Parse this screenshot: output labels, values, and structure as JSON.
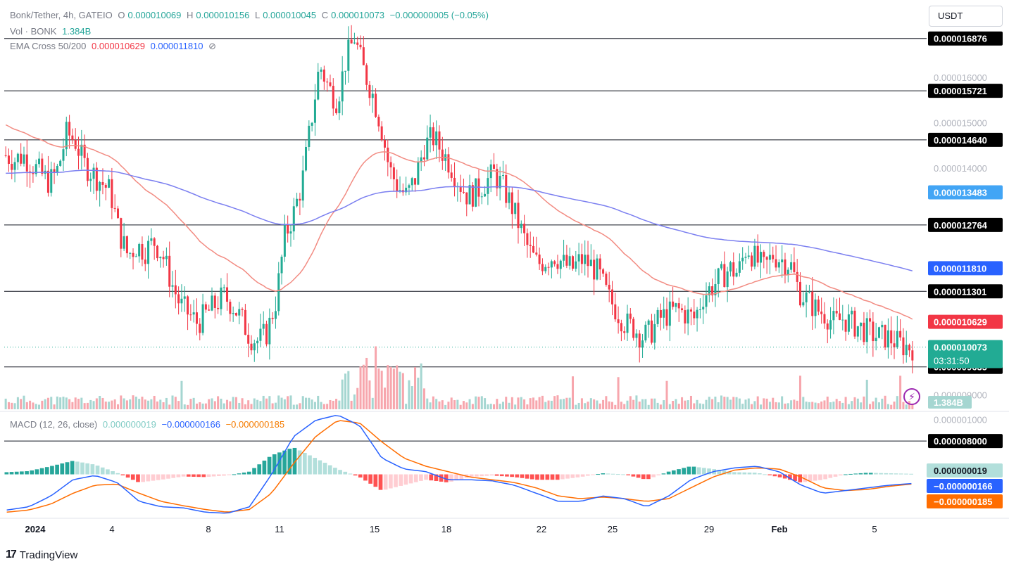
{
  "header": {
    "symbol_line": "Bonk/Tether, 4h, GATEIO",
    "o_label": "O",
    "o_value": "0.000010069",
    "h_label": "H",
    "h_value": "0.000010156",
    "l_label": "L",
    "l_value": "0.000010045",
    "c_label": "C",
    "c_value": "0.000010073",
    "change": "−0.000000005 (−0.05%)",
    "vol_label": "Vol · BONK",
    "vol_value": "1.384B",
    "ema_label": "EMA Cross 50/200",
    "ema_fast": "0.000010629",
    "ema_slow": "0.000011810",
    "ema_settings_icon": "eye-off-icon"
  },
  "currency_button": "USDT",
  "chart_data": {
    "type": "candlestick",
    "timeframe": "4h",
    "ylim": [
      8.7e-06,
      1.76e-05
    ],
    "y_ticks": [
      "0.000016000",
      "0.000015000",
      "0.000014000",
      "0.000009000"
    ],
    "x_ticks": [
      "2024",
      "4",
      "8",
      "11",
      "15",
      "18",
      "22",
      "25",
      "29",
      "Feb",
      "5"
    ],
    "horizontal_levels": [
      "0.000016876",
      "0.000015721",
      "0.000014640",
      "0.000012764",
      "0.000011301",
      "0.000009635",
      "0.000008000"
    ],
    "ema_tags": {
      "ema200": {
        "value": "0.000013483",
        "color": "#42a5f5"
      },
      "ema_slow_last": {
        "value": "0.000011810",
        "color": "#2962ff"
      },
      "ema_fast_last": {
        "value": "0.000010629",
        "color": "#f23645"
      }
    },
    "last_price": {
      "value": "0.000010073",
      "countdown": "03:31:50",
      "color": "#22ab94"
    },
    "volume_last": "1.384B",
    "colors": {
      "up": "#22ab94",
      "down": "#f23645",
      "ema_fast": "#f28b82",
      "ema_slow": "#7b7ff0",
      "volume_up": "#a5d6d1",
      "volume_down": "#f7a6ad"
    },
    "close_series": [
      1.43e-05,
      1.42e-05,
      1.43e-05,
      1.41e-05,
      1.39e-05,
      1.37e-05,
      1.4e-05,
      1.48e-05,
      1.46e-05,
      1.41e-05,
      1.39e-05,
      1.37e-05,
      1.35e-05,
      1.26e-05,
      1.21e-05,
      1.23e-05,
      1.22e-05,
      1.24e-05,
      1.21e-05,
      1.15e-05,
      1.1e-05,
      1.08e-05,
      1.06e-05,
      1.08e-05,
      1.1e-05,
      1.12e-05,
      1.1e-05,
      1.07e-05,
      1.03e-05,
      1.02e-05,
      1.04e-05,
      1.11e-05,
      1.25e-05,
      1.3e-05,
      1.37e-05,
      1.5e-05,
      1.63e-05,
      1.58e-05,
      1.55e-05,
      1.64e-05,
      1.69e-05,
      1.62e-05,
      1.57e-05,
      1.5e-05,
      1.4e-05,
      1.36e-05,
      1.34e-05,
      1.38e-05,
      1.45e-05,
      1.47e-05,
      1.44e-05,
      1.41e-05,
      1.37e-05,
      1.34e-05,
      1.35e-05,
      1.37e-05,
      1.39e-05,
      1.36e-05,
      1.32e-05,
      1.27e-05,
      1.22e-05,
      1.19e-05,
      1.2e-05,
      1.21e-05,
      1.19e-05,
      1.18e-05,
      1.2e-05,
      1.19e-05,
      1.17e-05,
      1.12e-05,
      1.09e-05,
      1.06e-05,
      1.05e-05,
      1.03e-05,
      1.04e-05,
      1.07e-05,
      1.08e-05,
      1.09e-05,
      1.08e-05,
      1.07e-05,
      1.12e-05,
      1.14e-05,
      1.16e-05,
      1.18e-05,
      1.17e-05,
      1.23e-05,
      1.2e-05,
      1.18e-05,
      1.21e-05,
      1.2e-05,
      1.19e-05,
      1.13e-05,
      1.11e-05,
      1.09e-05,
      1.08e-05,
      1.06e-05,
      1.07e-05,
      1.06e-05,
      1.05e-05,
      1.04e-05,
      1.03e-05,
      1.03e-05,
      1.02e-05,
      1.01e-05,
      1.007e-05
    ],
    "macd": {
      "label": "MACD (12, 26, close)",
      "histogram_value": "0.000000019",
      "macd_value": "−0.000000166",
      "signal_value": "−0.000000185",
      "y_ticks": [
        "0.000001000"
      ],
      "ylim": [
        -8e-07,
        1.1e-06
      ],
      "macd_series": [
        -6.6e-07,
        -6e-07,
        -4e-07,
        -1e-07,
        -2e-08,
        -1.5e-07,
        -5e-07,
        -6e-07,
        -6.2e-07,
        -7e-07,
        -7.2e-07,
        -6e-07,
        0.0,
        7e-07,
        1e-06,
        1.1e-06,
        9e-07,
        3e-07,
        1e-07,
        5e-08,
        -1e-07,
        -1e-07,
        -1.2e-07,
        -2e-07,
        -3.5e-07,
        -5e-07,
        -5e-07,
        -4e-07,
        -4.5e-07,
        -6e-07,
        -4e-07,
        -1e-07,
        5e-08,
        1.2e-07,
        1.5e-07,
        5e-08,
        -2e-07,
        -3.5e-07,
        -3e-07,
        -2.5e-07,
        -2e-07,
        -1.7e-07
      ],
      "signal_series": [
        -7e-07,
        -6.6e-07,
        -5.5e-07,
        -3.5e-07,
        -2e-07,
        -1.8e-07,
        -3.5e-07,
        -5e-07,
        -5.8e-07,
        -6.5e-07,
        -7e-07,
        -6.5e-07,
        -3.5e-07,
        2e-07,
        7e-07,
        1e-06,
        9.5e-07,
        6e-07,
        3e-07,
        1.5e-07,
        5e-08,
        -5e-08,
        -1e-07,
        -1.5e-07,
        -2.5e-07,
        -4e-07,
        -4.5e-07,
        -4.2e-07,
        -4.5e-07,
        -5e-07,
        -4.5e-07,
        -2.5e-07,
        -5e-08,
        8e-08,
        1.2e-07,
        1e-07,
        -5e-08,
        -2.5e-07,
        -3e-07,
        -2.8e-07,
        -2.2e-07,
        -1.8e-07
      ]
    }
  },
  "footer": {
    "brand": "TradingView",
    "brand_icon": "tradingview-logo-icon"
  },
  "alert_icon": "lightning-icon"
}
